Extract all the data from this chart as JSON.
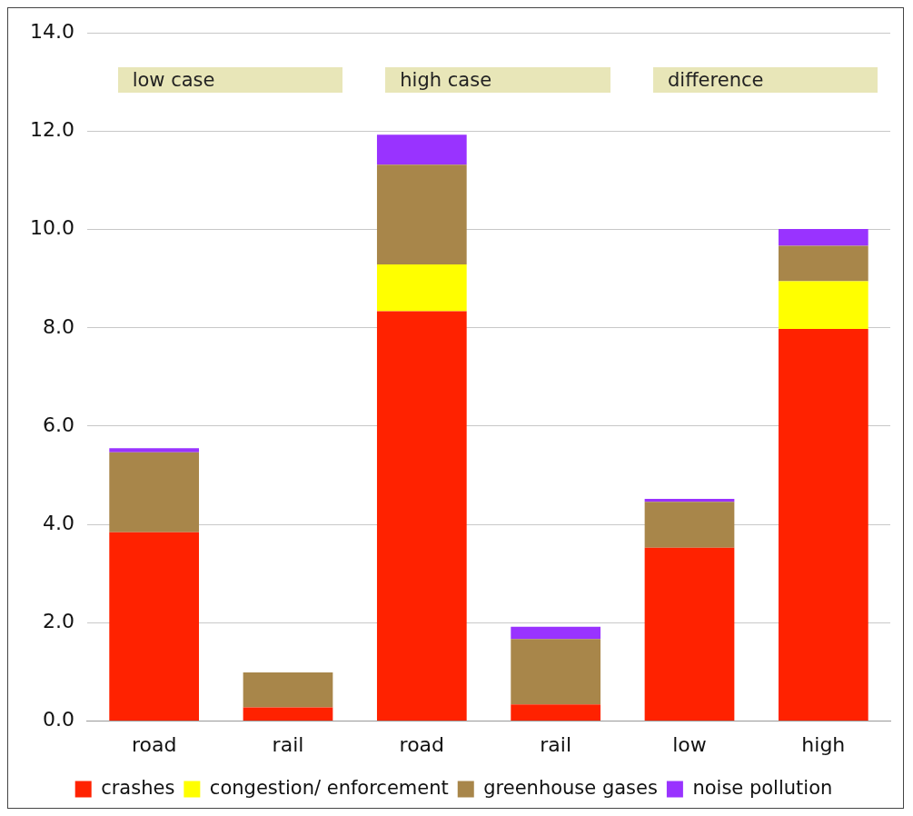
{
  "chart_data": {
    "type": "bar",
    "stacked": true,
    "categories": [
      "road",
      "rail",
      "road",
      "rail",
      "low",
      "high"
    ],
    "series": [
      {
        "name": "crashes",
        "color": "#ff2200",
        "values": [
          3.84,
          0.28,
          8.34,
          0.34,
          3.53,
          7.98
        ]
      },
      {
        "name": "congestion/ enforcement",
        "color": "#ffff00",
        "values": [
          0,
          0,
          0.95,
          0,
          0,
          0.97
        ]
      },
      {
        "name": "greenhouse gases",
        "color": "#a8864a",
        "values": [
          1.63,
          0.71,
          2.03,
          1.33,
          0.93,
          0.72
        ]
      },
      {
        "name": "noise pollution",
        "color": "#9933ff",
        "values": [
          0.08,
          0,
          0.61,
          0.25,
          0.06,
          0.34
        ]
      }
    ],
    "ylim": [
      0,
      14
    ],
    "yticks": [
      {
        "value": 0,
        "label": "0.0"
      },
      {
        "value": 2,
        "label": "2.0"
      },
      {
        "value": 4,
        "label": "4.0"
      },
      {
        "value": 6,
        "label": "6.0"
      },
      {
        "value": 8,
        "label": "8.0"
      },
      {
        "value": 10,
        "label": "10.0"
      },
      {
        "value": 12,
        "label": "12.0"
      },
      {
        "value": 14,
        "label": "14.0"
      }
    ],
    "grid": "y",
    "legend": "bottom",
    "annotations": [
      "low case",
      "high case",
      "difference"
    ]
  }
}
